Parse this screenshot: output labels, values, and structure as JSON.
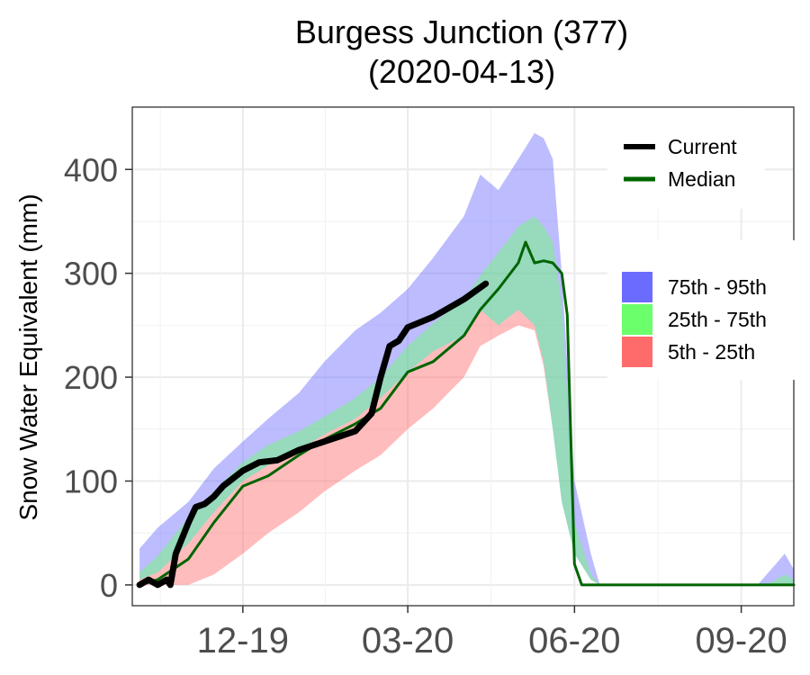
{
  "chart_data": {
    "type": "area",
    "title": "Burgess Junction (377)",
    "subtitle": "(2020-04-13)",
    "xlabel": "",
    "ylabel": "Snow Water Equivalent (mm)",
    "x_domain": [
      "2019-10-01",
      "2020-09-30"
    ],
    "ylim": [
      -20,
      460
    ],
    "y_ticks": [
      0,
      100,
      200,
      300,
      400
    ],
    "x_ticks": [
      {
        "date": "2019-12-01",
        "label": "12-19"
      },
      {
        "date": "2020-03-01",
        "label": "03-20"
      },
      {
        "date": "2020-06-01",
        "label": "06-20"
      },
      {
        "date": "2020-09-01",
        "label": "09-20"
      }
    ],
    "grid": true,
    "series": [
      {
        "name": "75th - 95th",
        "kind": "band",
        "color": "#6b6bff",
        "x": [
          "2019-10-05",
          "2019-10-15",
          "2019-11-01",
          "2019-11-15",
          "2019-12-01",
          "2019-12-15",
          "2020-01-01",
          "2020-01-15",
          "2020-02-01",
          "2020-02-15",
          "2020-03-01",
          "2020-03-15",
          "2020-04-01",
          "2020-04-10",
          "2020-04-20",
          "2020-05-01",
          "2020-05-10",
          "2020-05-15",
          "2020-05-20",
          "2020-05-25",
          "2020-06-01",
          "2020-06-10",
          "2020-06-15",
          "2020-08-15",
          "2020-09-01",
          "2020-09-10",
          "2020-09-15",
          "2020-09-25",
          "2020-09-30"
        ],
        "lower": [
          5,
          12,
          40,
          70,
          100,
          115,
          130,
          145,
          160,
          180,
          205,
          225,
          240,
          265,
          250,
          265,
          250,
          215,
          150,
          80,
          30,
          5,
          0,
          0,
          0,
          0,
          0,
          0,
          0
        ],
        "upper": [
          35,
          55,
          80,
          112,
          138,
          160,
          185,
          215,
          245,
          262,
          285,
          315,
          355,
          395,
          380,
          410,
          435,
          430,
          410,
          300,
          100,
          30,
          0,
          0,
          0,
          0,
          10,
          30,
          15
        ]
      },
      {
        "name": "25th - 75th",
        "kind": "band",
        "color": "#6bff6b",
        "x": [
          "2019-10-05",
          "2019-10-15",
          "2019-11-01",
          "2019-11-15",
          "2019-12-01",
          "2019-12-15",
          "2020-01-01",
          "2020-01-15",
          "2020-02-01",
          "2020-02-15",
          "2020-03-01",
          "2020-03-15",
          "2020-04-01",
          "2020-04-10",
          "2020-04-20",
          "2020-05-01",
          "2020-05-10",
          "2020-05-15",
          "2020-05-20",
          "2020-05-25",
          "2020-06-01",
          "2020-06-10",
          "2020-06-15",
          "2020-08-15",
          "2020-09-01",
          "2020-09-10",
          "2020-09-15",
          "2020-09-25",
          "2020-09-30"
        ],
        "lower": [
          5,
          12,
          40,
          70,
          100,
          115,
          130,
          145,
          160,
          180,
          205,
          225,
          240,
          265,
          250,
          265,
          250,
          215,
          150,
          80,
          30,
          5,
          0,
          0,
          0,
          0,
          0,
          0,
          0
        ],
        "upper": [
          12,
          28,
          65,
          90,
          118,
          135,
          148,
          162,
          180,
          200,
          230,
          252,
          275,
          298,
          320,
          345,
          355,
          345,
          330,
          270,
          60,
          10,
          0,
          0,
          0,
          0,
          0,
          10,
          5
        ]
      },
      {
        "name": "5th - 25th",
        "kind": "band",
        "color": "#ff6b6b",
        "x": [
          "2019-10-05",
          "2019-10-15",
          "2019-11-01",
          "2019-11-15",
          "2019-12-01",
          "2019-12-15",
          "2020-01-01",
          "2020-01-15",
          "2020-02-01",
          "2020-02-15",
          "2020-03-01",
          "2020-03-15",
          "2020-04-01",
          "2020-04-10",
          "2020-04-20",
          "2020-05-01",
          "2020-05-10",
          "2020-05-15",
          "2020-05-20",
          "2020-05-25",
          "2020-06-01",
          "2020-06-10",
          "2020-06-15",
          "2020-08-15",
          "2020-09-01",
          "2020-09-10",
          "2020-09-15",
          "2020-09-25",
          "2020-09-30"
        ],
        "lower": [
          0,
          0,
          0,
          10,
          30,
          50,
          70,
          90,
          110,
          125,
          150,
          170,
          200,
          230,
          240,
          250,
          245,
          210,
          150,
          80,
          30,
          5,
          0,
          0,
          0,
          0,
          0,
          0,
          0
        ],
        "upper": [
          5,
          12,
          40,
          70,
          100,
          115,
          130,
          145,
          160,
          180,
          205,
          225,
          240,
          265,
          250,
          265,
          250,
          215,
          150,
          80,
          30,
          5,
          0,
          0,
          0,
          0,
          0,
          0,
          0
        ]
      },
      {
        "name": "Median",
        "kind": "line",
        "color": "#006400",
        "x": [
          "2019-10-05",
          "2019-10-15",
          "2019-11-01",
          "2019-11-15",
          "2019-12-01",
          "2019-12-15",
          "2020-01-01",
          "2020-01-15",
          "2020-02-01",
          "2020-02-15",
          "2020-03-01",
          "2020-03-15",
          "2020-04-01",
          "2020-04-10",
          "2020-04-20",
          "2020-05-01",
          "2020-05-05",
          "2020-05-10",
          "2020-05-15",
          "2020-05-20",
          "2020-05-25",
          "2020-05-28",
          "2020-06-01",
          "2020-06-05",
          "2020-09-30"
        ],
        "values": [
          0,
          5,
          25,
          60,
          95,
          105,
          125,
          140,
          155,
          170,
          205,
          215,
          240,
          265,
          285,
          310,
          330,
          310,
          312,
          310,
          300,
          260,
          20,
          0,
          0
        ]
      },
      {
        "name": "Current",
        "kind": "line",
        "color": "#000000",
        "x": [
          "2019-10-05",
          "2019-10-10",
          "2019-10-15",
          "2019-10-20",
          "2019-10-22",
          "2019-10-25",
          "2019-11-01",
          "2019-11-05",
          "2019-11-10",
          "2019-11-15",
          "2019-11-20",
          "2019-12-01",
          "2019-12-10",
          "2019-12-20",
          "2020-01-01",
          "2020-01-15",
          "2020-02-01",
          "2020-02-10",
          "2020-02-15",
          "2020-02-20",
          "2020-02-25",
          "2020-03-01",
          "2020-03-15",
          "2020-04-01",
          "2020-04-13"
        ],
        "values": [
          0,
          5,
          0,
          5,
          0,
          30,
          60,
          75,
          78,
          85,
          95,
          110,
          118,
          120,
          130,
          138,
          148,
          165,
          200,
          230,
          235,
          248,
          258,
          275,
          290
        ]
      }
    ]
  },
  "legend": {
    "lines": [
      {
        "label": "Current",
        "color": "#000000"
      },
      {
        "label": "Median",
        "color": "#006400"
      }
    ],
    "bands": [
      {
        "label": "75th - 95th",
        "color": "#6b6bff"
      },
      {
        "label": "25th - 75th",
        "color": "#6bff6b"
      },
      {
        "label": "5th - 25th",
        "color": "#ff6b6b"
      }
    ]
  }
}
